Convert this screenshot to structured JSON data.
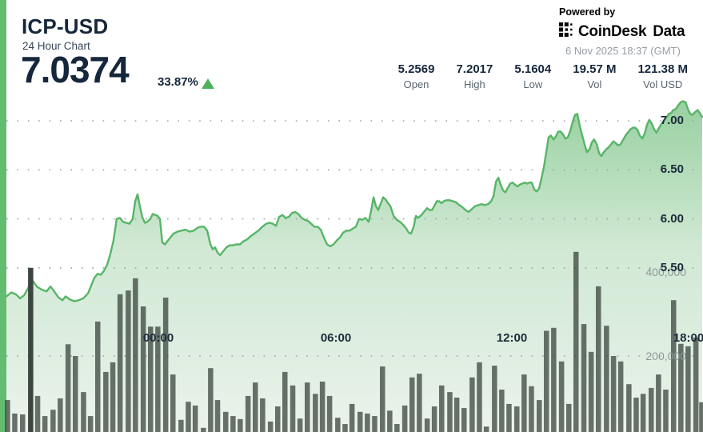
{
  "header": {
    "symbol": "ICP-USD",
    "subtitle": "24 Hour Chart",
    "price": "7.0374",
    "change_pct": "33.87%",
    "direction": "up",
    "stats": [
      {
        "value": "5.2569",
        "label": "Open"
      },
      {
        "value": "7.2017",
        "label": "High"
      },
      {
        "value": "5.1604",
        "label": "Low"
      },
      {
        "value": "19.57 M",
        "label": "Vol"
      },
      {
        "value": "121.38 M",
        "label": "Vol USD"
      }
    ],
    "powered_by": "Powered by",
    "brand_coindesk": "CoinDesk",
    "brand_data": "Data",
    "timestamp": "6 Nov 2025 18:37 (GMT)"
  },
  "colors": {
    "accent_bar": "#62bd70",
    "line": "#57b567",
    "area_top": "#8ccb95",
    "area_mid": "#cbe6cf",
    "area_bottom": "#ebf3ec",
    "grid_dot": "#99a3ab",
    "volume_bar": "#333d36",
    "volume_bar_dark": "#3c4540",
    "text_dark": "#16273b",
    "up_green": "#4fb15c"
  },
  "chart_data": {
    "type": "area",
    "title": "ICP-USD 24 Hour Chart",
    "legend": "none",
    "grid": "dotted-horizontal",
    "x_unit": "hours_from_window_start_24h",
    "price_axis": {
      "side": "right-inset",
      "labels": [
        "7.00",
        "6.50",
        "6.00",
        "5.50"
      ],
      "values": [
        7.0,
        6.5,
        6.0,
        5.5
      ],
      "min": 5.1,
      "max": 7.25
    },
    "volume_axis": {
      "side": "right-inset",
      "labels": [
        "400,000",
        "200,000"
      ],
      "values_thousands": [
        400,
        200
      ]
    },
    "x_ticks": [
      {
        "label": "00:00",
        "h": 5.24
      },
      {
        "label": "06:00",
        "h": 11.35
      },
      {
        "label": "12:00",
        "h": 17.41
      },
      {
        "label": "18:00",
        "h": 23.5
      }
    ],
    "price_points": [
      [
        0.0,
        5.21
      ],
      [
        0.17,
        5.25
      ],
      [
        0.33,
        5.23
      ],
      [
        0.47,
        5.19
      ],
      [
        0.61,
        5.22
      ],
      [
        0.74,
        5.29
      ],
      [
        0.88,
        5.38
      ],
      [
        1.05,
        5.31
      ],
      [
        1.21,
        5.28
      ],
      [
        1.38,
        5.26
      ],
      [
        1.52,
        5.31
      ],
      [
        1.65,
        5.26
      ],
      [
        1.79,
        5.2
      ],
      [
        1.93,
        5.17
      ],
      [
        2.04,
        5.21
      ],
      [
        2.18,
        5.18
      ],
      [
        2.34,
        5.16
      ],
      [
        2.48,
        5.17
      ],
      [
        2.65,
        5.19
      ],
      [
        2.81,
        5.24
      ],
      [
        2.92,
        5.32
      ],
      [
        3.03,
        5.4
      ],
      [
        3.14,
        5.44
      ],
      [
        3.25,
        5.43
      ],
      [
        3.36,
        5.47
      ],
      [
        3.47,
        5.53
      ],
      [
        3.58,
        5.64
      ],
      [
        3.69,
        5.78
      ],
      [
        3.8,
        6.0
      ],
      [
        3.91,
        6.01
      ],
      [
        4.02,
        5.97
      ],
      [
        4.13,
        5.96
      ],
      [
        4.24,
        5.95
      ],
      [
        4.35,
        6.0
      ],
      [
        4.44,
        6.18
      ],
      [
        4.52,
        6.25
      ],
      [
        4.6,
        6.13
      ],
      [
        4.68,
        6.02
      ],
      [
        4.77,
        5.96
      ],
      [
        4.85,
        5.97
      ],
      [
        4.96,
        6.0
      ],
      [
        5.04,
        6.05
      ],
      [
        5.13,
        6.04
      ],
      [
        5.21,
        6.03
      ],
      [
        5.29,
        6.0
      ],
      [
        5.37,
        5.76
      ],
      [
        5.46,
        5.74
      ],
      [
        5.54,
        5.77
      ],
      [
        5.65,
        5.81
      ],
      [
        5.76,
        5.85
      ],
      [
        5.9,
        5.87
      ],
      [
        6.03,
        5.88
      ],
      [
        6.17,
        5.89
      ],
      [
        6.31,
        5.87
      ],
      [
        6.45,
        5.88
      ],
      [
        6.59,
        5.91
      ],
      [
        6.7,
        5.92
      ],
      [
        6.81,
        5.92
      ],
      [
        6.92,
        5.88
      ],
      [
        7.03,
        5.74
      ],
      [
        7.11,
        5.69
      ],
      [
        7.19,
        5.71
      ],
      [
        7.27,
        5.66
      ],
      [
        7.36,
        5.63
      ],
      [
        7.47,
        5.67
      ],
      [
        7.58,
        5.71
      ],
      [
        7.69,
        5.73
      ],
      [
        7.8,
        5.73
      ],
      [
        7.91,
        5.74
      ],
      [
        8.05,
        5.74
      ],
      [
        8.16,
        5.77
      ],
      [
        8.29,
        5.79
      ],
      [
        8.4,
        5.82
      ],
      [
        8.54,
        5.85
      ],
      [
        8.68,
        5.88
      ],
      [
        8.82,
        5.92
      ],
      [
        8.95,
        5.95
      ],
      [
        9.07,
        5.96
      ],
      [
        9.18,
        5.95
      ],
      [
        9.29,
        5.93
      ],
      [
        9.4,
        6.02
      ],
      [
        9.51,
        6.04
      ],
      [
        9.62,
        6.01
      ],
      [
        9.73,
        6.02
      ],
      [
        9.84,
        6.06
      ],
      [
        9.95,
        6.07
      ],
      [
        10.06,
        6.05
      ],
      [
        10.17,
        6.01
      ],
      [
        10.28,
        5.99
      ],
      [
        10.39,
        5.98
      ],
      [
        10.5,
        5.95
      ],
      [
        10.61,
        5.92
      ],
      [
        10.72,
        5.92
      ],
      [
        10.83,
        5.89
      ],
      [
        10.94,
        5.81
      ],
      [
        11.05,
        5.74
      ],
      [
        11.16,
        5.72
      ],
      [
        11.27,
        5.74
      ],
      [
        11.38,
        5.78
      ],
      [
        11.49,
        5.81
      ],
      [
        11.6,
        5.86
      ],
      [
        11.71,
        5.88
      ],
      [
        11.82,
        5.88
      ],
      [
        11.93,
        5.9
      ],
      [
        12.04,
        5.92
      ],
      [
        12.15,
        6.0
      ],
      [
        12.26,
        5.99
      ],
      [
        12.37,
        6.01
      ],
      [
        12.48,
        5.97
      ],
      [
        12.57,
        6.09
      ],
      [
        12.65,
        6.22
      ],
      [
        12.73,
        6.13
      ],
      [
        12.81,
        6.09
      ],
      [
        12.9,
        6.16
      ],
      [
        12.98,
        6.22
      ],
      [
        13.06,
        6.2
      ],
      [
        13.15,
        6.16
      ],
      [
        13.23,
        6.13
      ],
      [
        13.34,
        6.03
      ],
      [
        13.45,
        5.99
      ],
      [
        13.56,
        5.97
      ],
      [
        13.67,
        5.94
      ],
      [
        13.78,
        5.9
      ],
      [
        13.86,
        5.86
      ],
      [
        13.94,
        5.85
      ],
      [
        14.03,
        5.92
      ],
      [
        14.11,
        6.03
      ],
      [
        14.19,
        6.01
      ],
      [
        14.3,
        6.04
      ],
      [
        14.41,
        6.08
      ],
      [
        14.49,
        6.11
      ],
      [
        14.58,
        6.09
      ],
      [
        14.66,
        6.09
      ],
      [
        14.74,
        6.13
      ],
      [
        14.83,
        6.18
      ],
      [
        14.91,
        6.18
      ],
      [
        14.99,
        6.16
      ],
      [
        15.07,
        6.18
      ],
      [
        15.16,
        6.19
      ],
      [
        15.27,
        6.19
      ],
      [
        15.38,
        6.18
      ],
      [
        15.49,
        6.17
      ],
      [
        15.6,
        6.14
      ],
      [
        15.71,
        6.12
      ],
      [
        15.82,
        6.09
      ],
      [
        15.93,
        6.07
      ],
      [
        16.04,
        6.1
      ],
      [
        16.15,
        6.13
      ],
      [
        16.26,
        6.14
      ],
      [
        16.37,
        6.15
      ],
      [
        16.48,
        6.14
      ],
      [
        16.59,
        6.15
      ],
      [
        16.7,
        6.18
      ],
      [
        16.78,
        6.23
      ],
      [
        16.87,
        6.38
      ],
      [
        16.95,
        6.42
      ],
      [
        17.03,
        6.35
      ],
      [
        17.11,
        6.29
      ],
      [
        17.19,
        6.27
      ],
      [
        17.28,
        6.32
      ],
      [
        17.36,
        6.36
      ],
      [
        17.44,
        6.37
      ],
      [
        17.52,
        6.35
      ],
      [
        17.61,
        6.33
      ],
      [
        17.69,
        6.35
      ],
      [
        17.77,
        6.36
      ],
      [
        17.86,
        6.37
      ],
      [
        17.94,
        6.36
      ],
      [
        18.02,
        6.37
      ],
      [
        18.1,
        6.37
      ],
      [
        18.19,
        6.3
      ],
      [
        18.27,
        6.28
      ],
      [
        18.35,
        6.31
      ],
      [
        18.43,
        6.41
      ],
      [
        18.52,
        6.53
      ],
      [
        18.6,
        6.68
      ],
      [
        18.68,
        6.83
      ],
      [
        18.76,
        6.85
      ],
      [
        18.85,
        6.81
      ],
      [
        18.93,
        6.84
      ],
      [
        19.01,
        6.89
      ],
      [
        19.1,
        6.89
      ],
      [
        19.18,
        6.86
      ],
      [
        19.26,
        6.82
      ],
      [
        19.34,
        6.83
      ],
      [
        19.43,
        6.9
      ],
      [
        19.51,
        6.99
      ],
      [
        19.59,
        7.06
      ],
      [
        19.67,
        7.07
      ],
      [
        19.76,
        6.94
      ],
      [
        19.84,
        6.85
      ],
      [
        19.92,
        6.76
      ],
      [
        20.0,
        6.68
      ],
      [
        20.09,
        6.71
      ],
      [
        20.17,
        6.78
      ],
      [
        20.25,
        6.81
      ],
      [
        20.34,
        6.76
      ],
      [
        20.42,
        6.67
      ],
      [
        20.5,
        6.64
      ],
      [
        20.58,
        6.68
      ],
      [
        20.67,
        6.71
      ],
      [
        20.75,
        6.73
      ],
      [
        20.83,
        6.76
      ],
      [
        20.91,
        6.79
      ],
      [
        21.0,
        6.77
      ],
      [
        21.08,
        6.75
      ],
      [
        21.16,
        6.76
      ],
      [
        21.24,
        6.8
      ],
      [
        21.33,
        6.85
      ],
      [
        21.41,
        6.88
      ],
      [
        21.49,
        6.91
      ],
      [
        21.58,
        6.93
      ],
      [
        21.66,
        6.93
      ],
      [
        21.74,
        6.91
      ],
      [
        21.82,
        6.85
      ],
      [
        21.91,
        6.82
      ],
      [
        21.99,
        6.87
      ],
      [
        22.07,
        6.96
      ],
      [
        22.15,
        7.01
      ],
      [
        22.24,
        6.97
      ],
      [
        22.32,
        6.91
      ],
      [
        22.4,
        6.88
      ],
      [
        22.49,
        6.93
      ],
      [
        22.57,
        6.97
      ],
      [
        22.65,
        7.0
      ],
      [
        22.73,
        7.03
      ],
      [
        22.82,
        7.07
      ],
      [
        22.9,
        7.08
      ],
      [
        22.98,
        7.11
      ],
      [
        23.06,
        7.12
      ],
      [
        23.15,
        7.16
      ],
      [
        23.23,
        7.19
      ],
      [
        23.31,
        7.2
      ],
      [
        23.4,
        7.19
      ],
      [
        23.48,
        7.12
      ],
      [
        23.56,
        7.07
      ],
      [
        23.64,
        7.06
      ],
      [
        23.73,
        7.09
      ],
      [
        23.81,
        7.11
      ],
      [
        23.89,
        7.08
      ],
      [
        23.97,
        7.04
      ]
    ],
    "volume_unit": "thousands",
    "volume_bars": [
      [
        0.03,
        95
      ],
      [
        0.28,
        63
      ],
      [
        0.55,
        61
      ],
      [
        0.83,
        410
      ],
      [
        1.07,
        105
      ],
      [
        1.32,
        57
      ],
      [
        1.6,
        72
      ],
      [
        1.85,
        99
      ],
      [
        2.12,
        228
      ],
      [
        2.37,
        200
      ],
      [
        2.65,
        114
      ],
      [
        2.89,
        57
      ],
      [
        3.14,
        282
      ],
      [
        3.42,
        162
      ],
      [
        3.66,
        185
      ],
      [
        3.91,
        347
      ],
      [
        4.19,
        356
      ],
      [
        4.44,
        385
      ],
      [
        4.71,
        318
      ],
      [
        4.96,
        270
      ],
      [
        5.21,
        270
      ],
      [
        5.48,
        339
      ],
      [
        5.73,
        156
      ],
      [
        6.01,
        48
      ],
      [
        6.26,
        91
      ],
      [
        6.5,
        82
      ],
      [
        6.78,
        29
      ],
      [
        7.03,
        171
      ],
      [
        7.27,
        95
      ],
      [
        7.55,
        67
      ],
      [
        7.8,
        57
      ],
      [
        8.05,
        50
      ],
      [
        8.32,
        105
      ],
      [
        8.57,
        137
      ],
      [
        8.82,
        99
      ],
      [
        9.09,
        44
      ],
      [
        9.34,
        80
      ],
      [
        9.59,
        162
      ],
      [
        9.86,
        130
      ],
      [
        10.11,
        51
      ],
      [
        10.36,
        137
      ],
      [
        10.64,
        110
      ],
      [
        10.88,
        139
      ],
      [
        11.13,
        105
      ],
      [
        11.41,
        53
      ],
      [
        11.66,
        38
      ],
      [
        11.9,
        86
      ],
      [
        12.18,
        67
      ],
      [
        12.43,
        63
      ],
      [
        12.68,
        57
      ],
      [
        12.95,
        175
      ],
      [
        13.2,
        70
      ],
      [
        13.45,
        38
      ],
      [
        13.72,
        82
      ],
      [
        13.97,
        149
      ],
      [
        14.22,
        158
      ],
      [
        14.49,
        51
      ],
      [
        14.74,
        80
      ],
      [
        14.99,
        130
      ],
      [
        15.27,
        114
      ],
      [
        15.51,
        101
      ],
      [
        15.76,
        76
      ],
      [
        16.04,
        149
      ],
      [
        16.29,
        185
      ],
      [
        16.53,
        32
      ],
      [
        16.81,
        177
      ],
      [
        17.06,
        120
      ],
      [
        17.31,
        86
      ],
      [
        17.58,
        80
      ],
      [
        17.83,
        156
      ],
      [
        18.08,
        128
      ],
      [
        18.35,
        95
      ],
      [
        18.6,
        260
      ],
      [
        18.85,
        267
      ],
      [
        19.12,
        187
      ],
      [
        19.37,
        86
      ],
      [
        19.62,
        448
      ],
      [
        19.89,
        276
      ],
      [
        20.14,
        210
      ],
      [
        20.39,
        366
      ],
      [
        20.67,
        272
      ],
      [
        20.91,
        200
      ],
      [
        21.16,
        187
      ],
      [
        21.44,
        133
      ],
      [
        21.69,
        101
      ],
      [
        21.93,
        110
      ],
      [
        22.21,
        124
      ],
      [
        22.46,
        156
      ],
      [
        22.71,
        120
      ],
      [
        22.98,
        333
      ],
      [
        23.23,
        229
      ],
      [
        23.48,
        223
      ],
      [
        23.75,
        244
      ],
      [
        23.95,
        90
      ]
    ],
    "dark_bar_index": 3
  }
}
